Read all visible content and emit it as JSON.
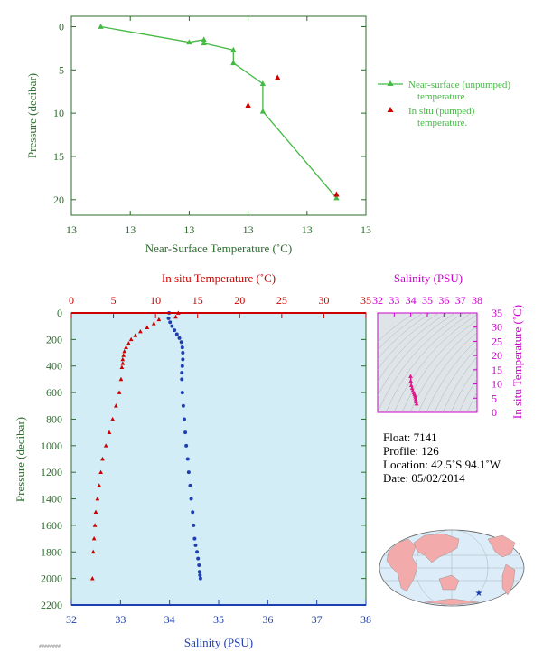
{
  "chart_data": [
    {
      "type": "line",
      "xlabel": "Near-Surface Temperature (˚C)",
      "ylabel": "Pressure (decibar)",
      "xtick_labels": [
        "13",
        "13",
        "13",
        "13",
        "13",
        "13"
      ],
      "ylim": [
        0,
        22
      ],
      "yticks": [
        0,
        5,
        10,
        15,
        20
      ],
      "series": [
        {
          "name": "Near-surface (unpumped) temperature.",
          "color": "#44b944",
          "x": [
            12.88,
            12.94,
            12.95,
            12.95,
            12.97,
            12.97,
            12.99,
            12.99,
            13.04
          ],
          "y": [
            0.0,
            1.8,
            1.5,
            1.9,
            2.7,
            4.2,
            6.6,
            9.8,
            19.8
          ]
        },
        {
          "name": "In situ (pumped) temperature.",
          "color": "#cc0000",
          "x": [
            12.98,
            13.0,
            13.04
          ],
          "y": [
            9.1,
            5.9,
            19.4
          ]
        }
      ],
      "legend": [
        "Near-surface (unpumped)",
        "temperature.",
        "In situ (pumped)",
        "temperature."
      ]
    },
    {
      "type": "scatter",
      "xlabel": "Salinity (PSU)",
      "x2label": "In situ Temperature (˚C)",
      "ylabel": "Pressure (decibar)",
      "xlim": [
        32,
        38
      ],
      "x2lim": [
        0,
        35
      ],
      "ylim": [
        0,
        2200
      ],
      "xticks": [
        32,
        33,
        34,
        35,
        36,
        37,
        38
      ],
      "x2ticks": [
        0,
        5,
        10,
        15,
        20,
        25,
        30,
        35
      ],
      "yticks": [
        0,
        200,
        400,
        600,
        800,
        1000,
        1200,
        1400,
        1600,
        1800,
        2000,
        2200
      ],
      "series": [
        {
          "name": "In situ Temperature (˚C)",
          "color": "#cc0000",
          "x": [
            12.7,
            12.4,
            10.4,
            9.8,
            9.0,
            8.2,
            7.6,
            7.1,
            6.8,
            6.5,
            6.3,
            6.2,
            6.1,
            6.1,
            6.0,
            5.9,
            5.7,
            5.3,
            4.9,
            4.5,
            4.1,
            3.7,
            3.5,
            3.3,
            3.1,
            2.9,
            2.8,
            2.7,
            2.6,
            2.5
          ],
          "y": [
            0,
            30,
            50,
            80,
            110,
            140,
            170,
            200,
            230,
            260,
            290,
            320,
            350,
            380,
            410,
            500,
            600,
            700,
            800,
            900,
            1000,
            1100,
            1200,
            1300,
            1400,
            1500,
            1600,
            1700,
            1800,
            2000
          ]
        },
        {
          "name": "Salinity (PSU)",
          "color": "#1f3fb0",
          "x": [
            33.99,
            33.98,
            34.01,
            34.05,
            34.1,
            34.15,
            34.2,
            34.24,
            34.26,
            34.27,
            34.27,
            34.26,
            34.25,
            34.25,
            34.26,
            34.28,
            34.3,
            34.32,
            34.34,
            34.37,
            34.39,
            34.42,
            34.44,
            34.47,
            34.49,
            34.51,
            34.53,
            34.56,
            34.58,
            34.6,
            34.61,
            34.62,
            34.63
          ],
          "y": [
            0,
            40,
            70,
            100,
            130,
            160,
            190,
            220,
            260,
            300,
            350,
            400,
            450,
            500,
            600,
            700,
            800,
            900,
            1000,
            1100,
            1200,
            1300,
            1400,
            1500,
            1600,
            1700,
            1750,
            1800,
            1850,
            1900,
            1950,
            1975,
            2000
          ]
        }
      ]
    },
    {
      "type": "scatter",
      "title": "Salinity (PSU)",
      "ylabel": "In situ Temperature (˚C)",
      "xlim": [
        32,
        38
      ],
      "ylim": [
        0,
        35
      ],
      "xticks": [
        32,
        33,
        34,
        35,
        36,
        37,
        38
      ],
      "yticks": [
        0,
        5,
        10,
        15,
        20,
        25,
        30,
        35
      ],
      "series": [
        {
          "name": "T-S profile",
          "color": "#e0188c",
          "x": [
            33.99,
            34.0,
            34.03,
            34.08,
            34.12,
            34.18,
            34.22,
            34.26,
            34.28,
            34.3,
            34.32,
            34.35
          ],
          "y": [
            12.7,
            11.0,
            9.5,
            8.5,
            7.6,
            6.9,
            6.3,
            5.8,
            5.2,
            4.5,
            3.8,
            3.0
          ]
        }
      ]
    }
  ],
  "float_info": {
    "float": "Float:  7141",
    "profile": "Profile:  126",
    "location": "Location:  42.5˚S  94.1˚W",
    "date": "Date:  05/02/2014"
  },
  "map": {
    "land_color": "#f2aaaa",
    "ocean_color": "#dcecf8",
    "marker": "star"
  },
  "footer_code": "########"
}
